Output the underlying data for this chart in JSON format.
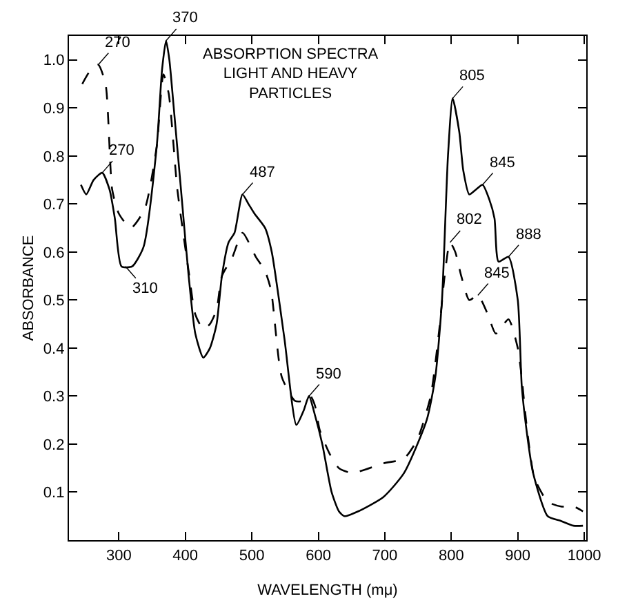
{
  "chart_data": {
    "type": "line",
    "title": "ABSORPTION SPECTRA\nLIGHT AND HEAVY\nPARTICLES",
    "xlabel": "WAVELENGTH (mμ)",
    "ylabel": "ABSORBANCE",
    "xlim": [
      225,
      1003
    ],
    "ylim": [
      0,
      1.05
    ],
    "xticks": [
      300,
      400,
      500,
      600,
      700,
      800,
      900,
      1000
    ],
    "yticks": [
      {
        "value": 0.1,
        "label": "0.1"
      },
      {
        "value": 0.2,
        "label": "0.2"
      },
      {
        "value": 0.3,
        "label": "0.3"
      },
      {
        "value": 0.4,
        "label": "0.4"
      },
      {
        "value": 0.5,
        "label": "0.5"
      },
      {
        "value": 0.6,
        "label": "0.6"
      },
      {
        "value": 0.7,
        "label": "0.7"
      },
      {
        "value": 0.8,
        "label": "0.8"
      },
      {
        "value": 0.9,
        "label": "0.9"
      },
      {
        "value": 1.0,
        "label": "1.0"
      }
    ],
    "marker": "none",
    "series": [
      {
        "color": "#000000",
        "line_style": "solid",
        "x": [
          243,
          251,
          262,
          275,
          286,
          294,
          304,
          320,
          337,
          357,
          365,
          371,
          376,
          382,
          396,
          405,
          415,
          427,
          437,
          447,
          455,
          465,
          474,
          486,
          495,
          504,
          520,
          530,
          549,
          567,
          578,
          586,
          595,
          606,
          620,
          631,
          639,
          660,
          698,
          729,
          763,
          776,
          786,
          795,
          802,
          812,
          818,
          827,
          837,
          847,
          857,
          865,
          871,
          886,
          900,
          906,
          914,
          923,
          945,
          965,
          984,
          998
        ],
        "values": [
          0.74,
          0.72,
          0.75,
          0.765,
          0.73,
          0.67,
          0.57,
          0.57,
          0.61,
          0.82,
          0.98,
          1.04,
          1.0,
          0.91,
          0.69,
          0.55,
          0.43,
          0.38,
          0.4,
          0.45,
          0.55,
          0.62,
          0.64,
          0.72,
          0.7,
          0.68,
          0.65,
          0.6,
          0.42,
          0.24,
          0.27,
          0.3,
          0.26,
          0.2,
          0.1,
          0.06,
          0.05,
          0.06,
          0.09,
          0.14,
          0.25,
          0.34,
          0.5,
          0.8,
          0.92,
          0.85,
          0.77,
          0.72,
          0.73,
          0.74,
          0.71,
          0.67,
          0.58,
          0.59,
          0.5,
          0.32,
          0.22,
          0.14,
          0.05,
          0.04,
          0.03,
          0.03
        ]
      },
      {
        "color": "#000000",
        "line_style": "dashed",
        "x": [
          245,
          258,
          269,
          280,
          290,
          300,
          318,
          339,
          357,
          367,
          375,
          388,
          405,
          415,
          427,
          437,
          447,
          455,
          471,
          486,
          506,
          520,
          529,
          545,
          565,
          578,
          588,
          595,
          602,
          617,
          631,
          651,
          698,
          729,
          749,
          769,
          782,
          790,
          798,
          806,
          815,
          827,
          840,
          855,
          867,
          886,
          900,
          905,
          914,
          925,
          945,
          965,
          984,
          998
        ],
        "values": [
          0.95,
          0.98,
          0.99,
          0.95,
          0.73,
          0.68,
          0.65,
          0.69,
          0.82,
          0.97,
          0.93,
          0.73,
          0.56,
          0.47,
          0.44,
          0.45,
          0.48,
          0.55,
          0.59,
          0.64,
          0.59,
          0.56,
          0.52,
          0.34,
          0.29,
          0.29,
          0.3,
          0.28,
          0.23,
          0.18,
          0.15,
          0.14,
          0.16,
          0.17,
          0.21,
          0.3,
          0.44,
          0.55,
          0.62,
          0.6,
          0.55,
          0.5,
          0.51,
          0.47,
          0.43,
          0.46,
          0.4,
          0.35,
          0.23,
          0.13,
          0.08,
          0.07,
          0.07,
          0.06
        ]
      }
    ],
    "annotations": [
      {
        "text": "270",
        "x": 269,
        "y": 0.99
      },
      {
        "text": "370",
        "x": 371,
        "y": 1.04
      },
      {
        "text": "270",
        "x": 275,
        "y": 0.765
      },
      {
        "text": "310",
        "x": 310,
        "y": 0.57
      },
      {
        "text": "487",
        "x": 486,
        "y": 0.72
      },
      {
        "text": "590",
        "x": 586,
        "y": 0.3
      },
      {
        "text": "805",
        "x": 802,
        "y": 0.92
      },
      {
        "text": "845",
        "x": 847,
        "y": 0.74
      },
      {
        "text": "802",
        "x": 798,
        "y": 0.62
      },
      {
        "text": "845",
        "x": 840,
        "y": 0.51
      },
      {
        "text": "888",
        "x": 886,
        "y": 0.59
      }
    ]
  }
}
